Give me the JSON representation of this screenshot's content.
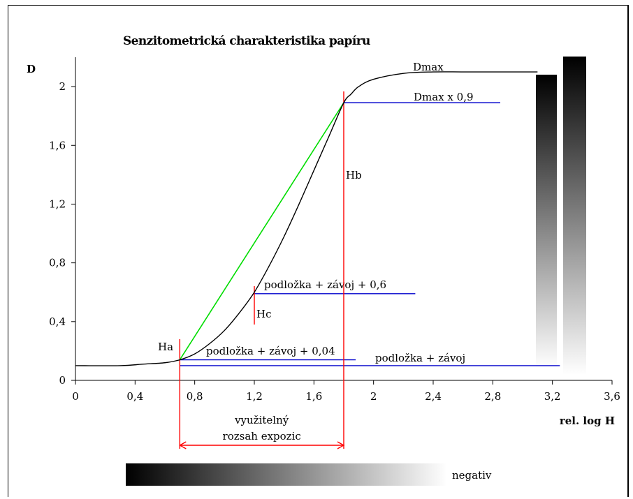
{
  "chart_data": {
    "type": "line",
    "title": "Senzitometrická charakteristika papíru",
    "xlabel": "rel. log H",
    "ylabel": "D",
    "xlim": [
      0,
      3.6
    ],
    "ylim": [
      0,
      2.2
    ],
    "xticks": [
      0,
      0.4,
      0.8,
      1.2,
      1.6,
      2,
      2.4,
      2.8,
      3.2,
      3.6
    ],
    "xtick_labels": [
      "0",
      "0,4",
      "0,8",
      "1,2",
      "1,6",
      "2",
      "2,4",
      "2,8",
      "3,2",
      "3,6"
    ],
    "yticks": [
      0,
      0.4,
      0.8,
      1.2,
      1.6,
      2
    ],
    "ytick_labels": [
      "0",
      "0,4",
      "0,8",
      "1,2",
      "1,6",
      "2"
    ],
    "grid": false,
    "series": [
      {
        "x": [
          0,
          0.3,
          0.45,
          0.6,
          0.7,
          0.8,
          0.9,
          1.0,
          1.1,
          1.2,
          1.3,
          1.4,
          1.5,
          1.6,
          1.7,
          1.8,
          1.85,
          1.9,
          2.0,
          2.2,
          2.4,
          2.6,
          2.8,
          3.0,
          3.1
        ],
        "y": [
          0.1,
          0.1,
          0.11,
          0.12,
          0.14,
          0.18,
          0.25,
          0.34,
          0.46,
          0.6,
          0.78,
          0.98,
          1.2,
          1.43,
          1.66,
          1.89,
          1.95,
          2.0,
          2.05,
          2.09,
          2.1,
          2.1,
          2.1,
          2.1,
          2.1
        ]
      }
    ],
    "reference_lines": [
      {
        "label": "Dmax",
        "y": 2.1
      },
      {
        "label": "Dmax x 0,9",
        "y": 1.89,
        "x_from": 1.8,
        "x_to": 2.85
      },
      {
        "label": "podložka + závoj + 0,6",
        "y": 0.59,
        "x_from": 1.2,
        "x_to": 2.28
      },
      {
        "label": "podložka + závoj + 0,04",
        "y": 0.14,
        "x_from": 0.7,
        "x_to": 1.88
      },
      {
        "label": "podložka + závoj",
        "y": 0.1,
        "x_from": 0.7,
        "x_to": 3.25
      }
    ],
    "markers": [
      {
        "label": "Ha",
        "x": 0.7
      },
      {
        "label": "Hb",
        "x": 1.8
      },
      {
        "label": "Hc",
        "x": 1.2
      }
    ],
    "green_line": {
      "x": [
        0.7,
        1.8
      ],
      "y": [
        0.14,
        1.89
      ]
    },
    "range_annotation": {
      "lines": [
        "využitelný",
        "rozsah expozic"
      ],
      "x_from": 0.7,
      "x_to": 1.8
    },
    "gradient_label": "negativ",
    "colors": {
      "curve": "#000000",
      "reference": "#0000cc",
      "marker": "#ff0000",
      "green": "#00dd00"
    }
  }
}
